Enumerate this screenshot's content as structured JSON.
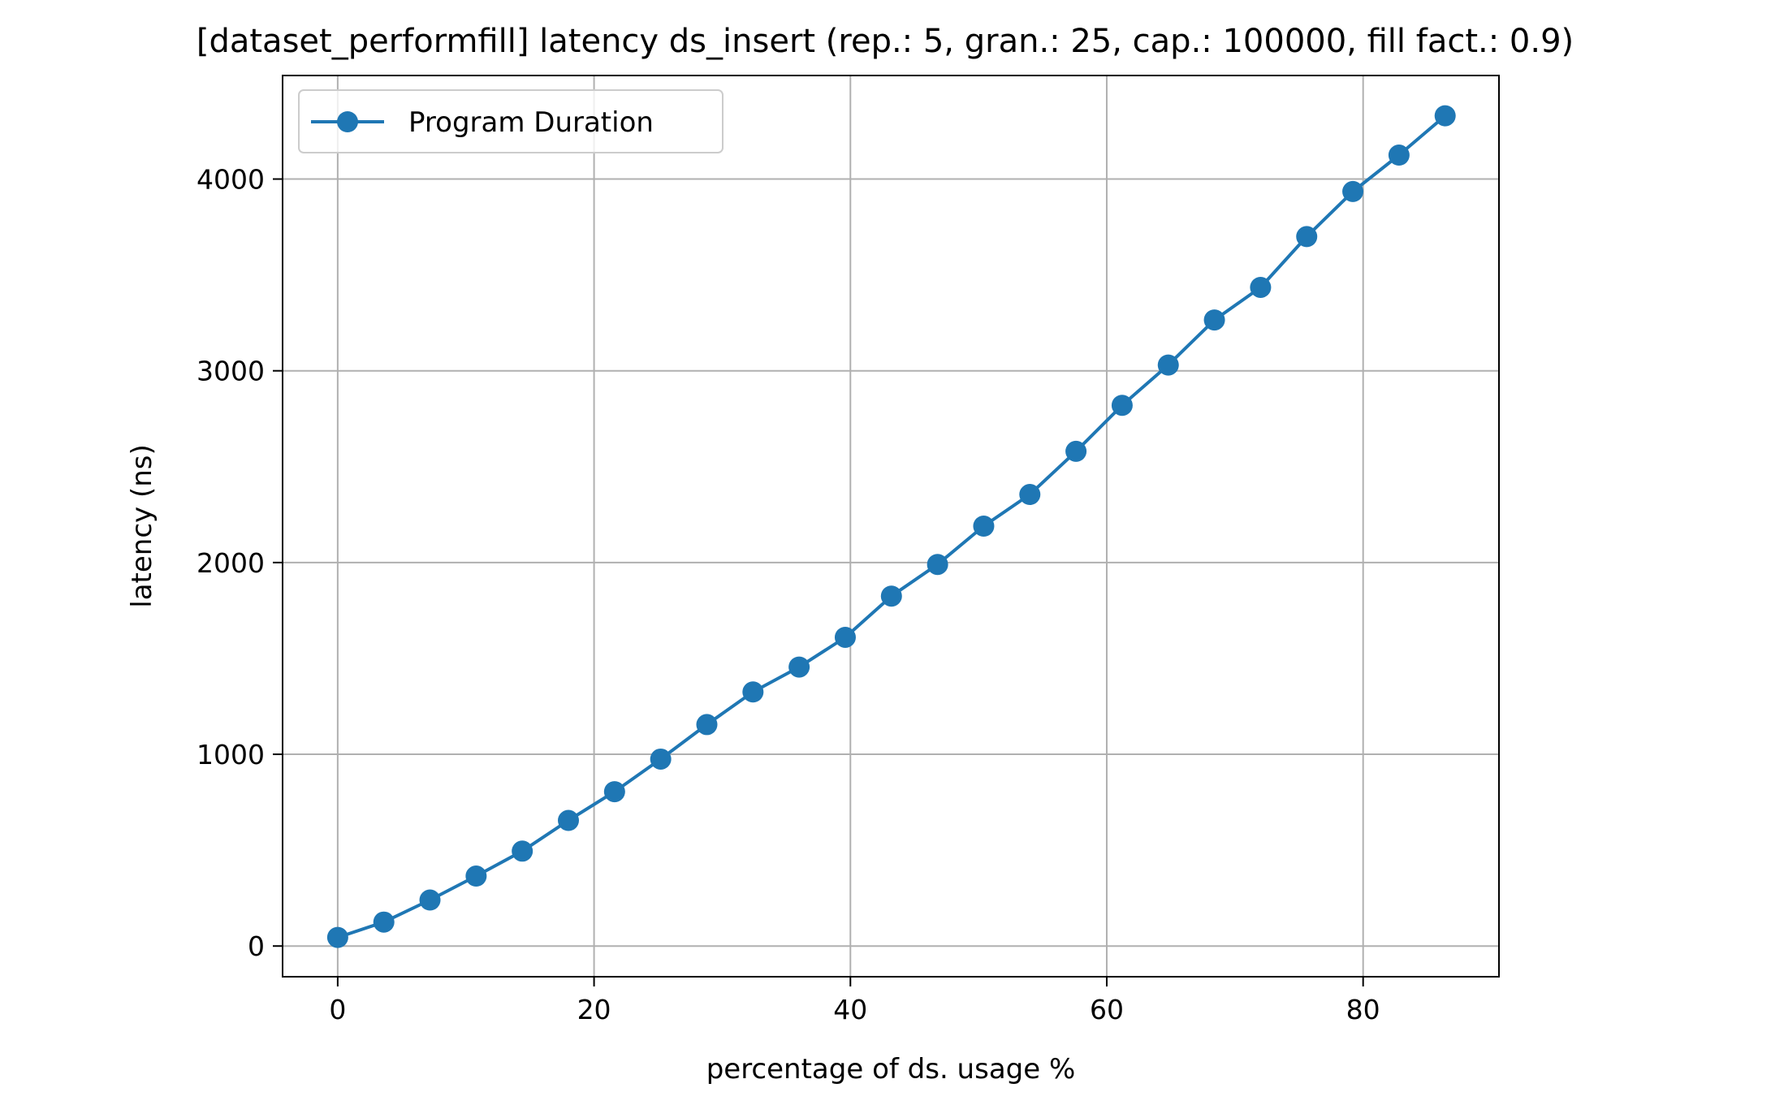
{
  "chart_data": {
    "type": "line",
    "title": "[dataset_performfill] latency ds_insert (rep.: 5, gran.: 25, cap.: 100000, fill fact.: 0.9)",
    "xlabel": "percentage of ds. usage %",
    "ylabel": "latency (ns)",
    "xlim": [
      -4.3,
      90.6
    ],
    "ylim": [
      -160,
      4540
    ],
    "xticks": [
      0,
      20,
      40,
      60,
      80
    ],
    "yticks": [
      0,
      1000,
      2000,
      3000,
      4000
    ],
    "grid": true,
    "legend_position": "top-left",
    "series": [
      {
        "name": "Program Duration",
        "color": "#1f77b4",
        "marker": "circle",
        "x": [
          0,
          3.6,
          7.2,
          10.8,
          14.4,
          18.0,
          21.6,
          25.2,
          28.8,
          32.4,
          36.0,
          39.6,
          43.2,
          46.8,
          50.4,
          54.0,
          57.6,
          61.2,
          64.8,
          68.4,
          72.0,
          75.6,
          79.2,
          82.8,
          86.4
        ],
        "y": [
          45,
          125,
          240,
          365,
          495,
          655,
          805,
          975,
          1155,
          1325,
          1455,
          1610,
          1825,
          1990,
          2190,
          2355,
          2580,
          2820,
          3030,
          3265,
          3435,
          3700,
          3935,
          4125,
          4330
        ]
      }
    ]
  }
}
